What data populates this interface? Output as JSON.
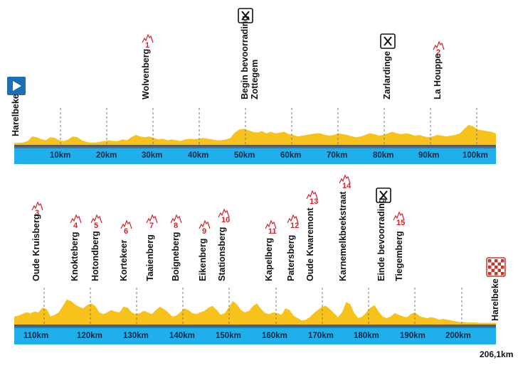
{
  "colors": {
    "profile": "#f7c21b",
    "band": "#1fb0ec",
    "band_edge": "#2d7fb8",
    "climb": "#d2232a",
    "start_marker": "#1d6fb3"
  },
  "rows": [
    {
      "km_labels": [
        "10km",
        "20km",
        "30km",
        "40km",
        "50km",
        "60km",
        "70km",
        "80km",
        "90km",
        "100km"
      ],
      "places": [
        {
          "label": "Harelbeke",
          "icon": "start-flag",
          "km": 0
        },
        {
          "label": "Wolvenberg",
          "climb": "1",
          "km": 29
        },
        {
          "label": "Begin bevoorrading",
          "label2": "Zottegem",
          "icon": "feed-zone",
          "km": 50
        },
        {
          "label": "Zarlardinge",
          "icon": "feed-zone",
          "km": 81
        },
        {
          "label": "La Houppe",
          "climb": "2",
          "km": 91
        }
      ]
    },
    {
      "km_labels": [
        "110km",
        "120km",
        "130km",
        "140km",
        "150km",
        "160km",
        "170km",
        "180km",
        "190km",
        "200km"
      ],
      "places": [
        {
          "label": "Oude Kruisberg",
          "climb": "3",
          "km": 111
        },
        {
          "label": "Knokteberg",
          "climb": "4",
          "km": 117
        },
        {
          "label": "Hotondberg",
          "climb": "5",
          "km": 121
        },
        {
          "label": "Kortekeer",
          "climb": "6",
          "km": 127
        },
        {
          "label": "Taaienberg",
          "climb": "7",
          "km": 133
        },
        {
          "label": "Boigneberg",
          "climb": "8",
          "km": 139
        },
        {
          "label": "Eikenberg",
          "climb": "9",
          "km": 146
        },
        {
          "label": "Stationsberg",
          "climb": "10",
          "km": 150
        },
        {
          "label": "Kapelberg",
          "climb": "11",
          "km": 159
        },
        {
          "label": "Patersberg",
          "climb": "12",
          "km": 164
        },
        {
          "label": "Oude Kwaremont",
          "climb": "13",
          "km": 169
        },
        {
          "label": "Karnemelkbeekstraat",
          "climb": "14",
          "km": 176
        },
        {
          "label": "Einde bevoorrading",
          "icon": "feed-zone",
          "km": 184
        },
        {
          "label": "Tiegemberg",
          "climb": "15",
          "km": 187
        },
        {
          "label": "Harelbeke",
          "icon": "finish-flag",
          "km": 206.1
        }
      ]
    }
  ],
  "total_distance": "206,1km"
}
